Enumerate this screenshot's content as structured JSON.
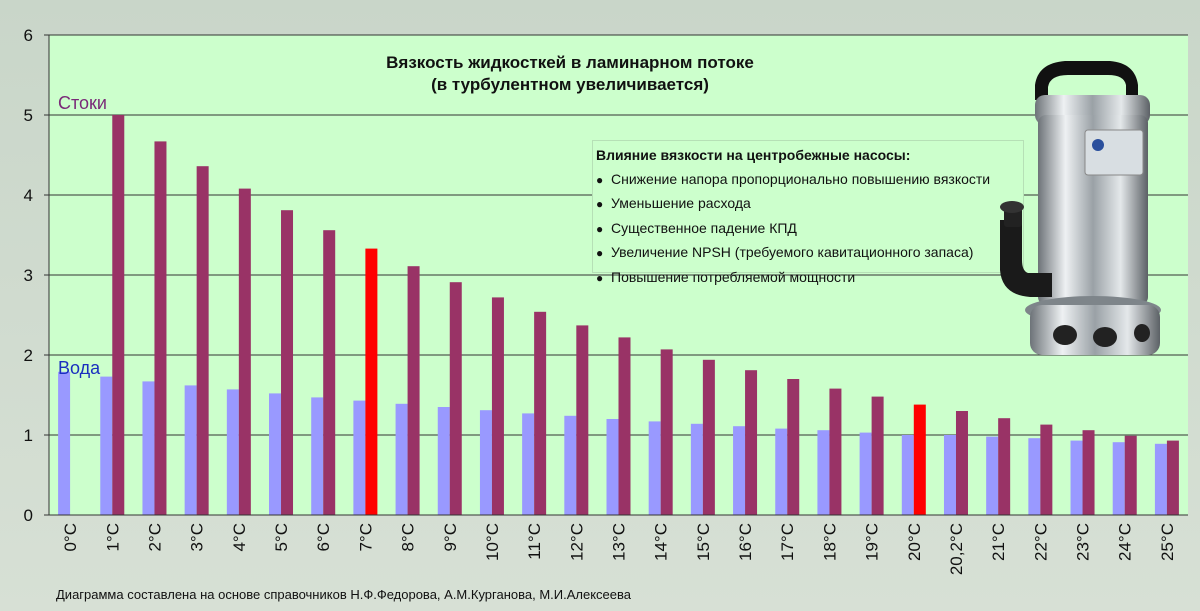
{
  "chart_data": {
    "type": "bar",
    "title": "Вязкость жидкосткей в ламинарном потоке",
    "subtitle": "(в турбулентном увеличивается)",
    "ylim": [
      0,
      6
    ],
    "yticks": [
      "0",
      "1",
      "2",
      "3",
      "4",
      "5",
      "6"
    ],
    "grid": true,
    "categories": [
      "0°C",
      "1°C",
      "2°C",
      "3°C",
      "4°C",
      "5°C",
      "6°C",
      "7°C",
      "8°C",
      "9°C",
      "10°C",
      "11°C",
      "12°C",
      "13°C",
      "14°C",
      "15°C",
      "16°C",
      "17°C",
      "18°C",
      "19°C",
      "20°C",
      "20,2°C",
      "21°C",
      "22°C",
      "23°C",
      "24°C",
      "25°C"
    ],
    "series": [
      {
        "name": "Вода",
        "color": "#9999ff",
        "values": [
          1.79,
          1.73,
          1.67,
          1.62,
          1.57,
          1.52,
          1.47,
          1.43,
          1.39,
          1.35,
          1.31,
          1.27,
          1.24,
          1.2,
          1.17,
          1.14,
          1.11,
          1.08,
          1.06,
          1.03,
          1.0,
          1.0,
          0.98,
          0.96,
          0.93,
          0.91,
          0.89
        ]
      },
      {
        "name": "Стоки",
        "color": "#993366",
        "values": [
          null,
          5.0,
          4.67,
          4.36,
          4.08,
          3.81,
          3.56,
          3.33,
          3.11,
          2.91,
          2.72,
          2.54,
          2.37,
          2.22,
          2.07,
          1.94,
          1.81,
          1.7,
          1.58,
          1.48,
          1.38,
          1.3,
          1.21,
          1.13,
          1.06,
          0.99,
          0.93
        ],
        "highlight": {
          "indices": [
            7,
            20
          ],
          "color": "#ff0000"
        }
      }
    ]
  },
  "labels": {
    "stoki": "Стоки",
    "voda": "Вода"
  },
  "infobox": {
    "heading": "Влияние вязкости на центробежные насосы:",
    "items": [
      "Снижение напора пропорционально повышению вязкости",
      "Уменьшение расхода",
      "Существенное падение КПД",
      "Увеличение NPSH (требуемого кавитационного запаса)",
      "Повышение потребляемой мощности"
    ]
  },
  "footnote": "Диаграмма составлена на основе справочников Н.Ф.Федорова, А.М.Курганова, М.И.Алексеева",
  "colors": {
    "background": "#d3ddd1",
    "plot_area": "#ccffcc",
    "grid": "#333333"
  },
  "image": {
    "name": "pump-photo",
    "description_icon": "stainless-submersible-pump"
  }
}
